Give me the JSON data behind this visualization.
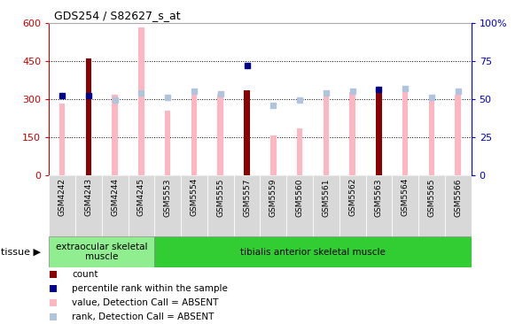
{
  "title": "GDS254 / S82627_s_at",
  "samples": [
    "GSM4242",
    "GSM4243",
    "GSM4244",
    "GSM4245",
    "GSM5553",
    "GSM5554",
    "GSM5555",
    "GSM5557",
    "GSM5559",
    "GSM5560",
    "GSM5561",
    "GSM5562",
    "GSM5563",
    "GSM5564",
    "GSM5565",
    "GSM5566"
  ],
  "count_values": [
    null,
    460,
    null,
    null,
    null,
    null,
    null,
    335,
    null,
    null,
    null,
    null,
    330,
    null,
    null,
    null
  ],
  "percentile_rank": [
    52,
    52,
    null,
    null,
    null,
    null,
    null,
    72,
    null,
    null,
    null,
    null,
    56,
    null,
    null,
    null
  ],
  "absent_value": [
    280,
    null,
    315,
    580,
    255,
    325,
    320,
    null,
    155,
    185,
    320,
    325,
    null,
    335,
    310,
    315
  ],
  "absent_rank": [
    null,
    null,
    49,
    54,
    51,
    55,
    53,
    null,
    46,
    49,
    54,
    55,
    null,
    57,
    51,
    55
  ],
  "ylim_left": [
    0,
    600
  ],
  "ylim_right": [
    0,
    100
  ],
  "yticks_left": [
    0,
    150,
    300,
    450,
    600
  ],
  "yticks_right": [
    0,
    25,
    50,
    75,
    100
  ],
  "tissue_groups": [
    {
      "label": "extraocular skeletal\nmuscle",
      "start": 0,
      "end": 4,
      "color": "#90ee90"
    },
    {
      "label": "tibialis anterior skeletal muscle",
      "start": 4,
      "end": 16,
      "color": "#32cd32"
    }
  ],
  "count_color": "#8b0000",
  "percentile_color": "#00008b",
  "absent_value_color": "#ffb6c1",
  "absent_rank_color": "#b0c4de",
  "bg_color": "#ffffff",
  "tick_label_color_left": "#cc0000",
  "tick_label_color_right": "#0000cc"
}
